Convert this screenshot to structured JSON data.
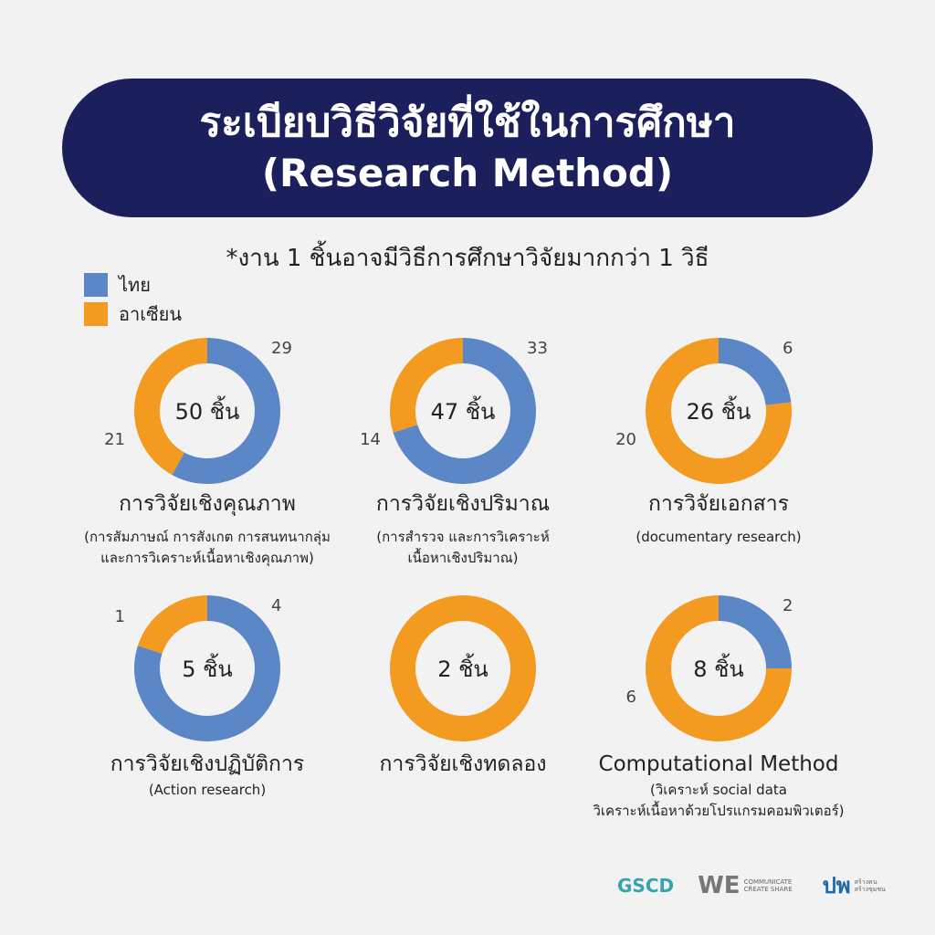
{
  "header": {
    "title_th": "ระเบียบวิธีวิจัยที่ใช้ในการศึกษา",
    "title_en": "(Research Method)"
  },
  "note": "*งาน 1 ชิ้นอาจมีวิธีการศึกษาวิจัยมากกว่า 1 วิธี",
  "legend": [
    {
      "label": "ไทย",
      "color": "#5b87c7"
    },
    {
      "label": "อาเซียน",
      "color": "#f39a21"
    }
  ],
  "chart_data": [
    {
      "type": "pie",
      "center_label": "50 ชิ้น",
      "thai": 29,
      "asean": 21,
      "thai_label": "29",
      "asean_label": "21",
      "title": "การวิจัยเชิงคุณภาพ",
      "subtitle_lines": [
        "(การสัมภาษณ์ การสังเกต การสนทนากลุ่ม",
        "และการวิเคราะห์เนื้อหาเชิงคุณภาพ)"
      ]
    },
    {
      "type": "pie",
      "center_label": "47 ชิ้น",
      "thai": 33,
      "asean": 14,
      "thai_label": "33",
      "asean_label": "14",
      "title": "การวิจัยเชิงปริมาณ",
      "subtitle_lines": [
        "(การสำรวจ และการวิเคราะห์",
        "เนื้อหาเชิงปริมาณ)"
      ]
    },
    {
      "type": "pie",
      "center_label": "26 ชิ้น",
      "thai": 6,
      "asean": 20,
      "thai_label": "6",
      "asean_label": "20",
      "title": "การวิจัยเอกสาร",
      "subtitle_lines": [
        "(documentary research)"
      ]
    },
    {
      "type": "pie",
      "center_label": "5 ชิ้น",
      "thai": 4,
      "asean": 1,
      "thai_label": "4",
      "asean_label": "1",
      "title": "การวิจัยเชิงปฏิบัติการ",
      "subtitle_lines": [
        "(Action research)"
      ]
    },
    {
      "type": "pie",
      "center_label": "2 ชิ้น",
      "thai": 0,
      "asean": 2,
      "thai_label": "",
      "asean_label": "",
      "title": "การวิจัยเชิงทดลอง",
      "subtitle_lines": []
    },
    {
      "type": "pie",
      "center_label": "8 ชิ้น",
      "thai": 2,
      "asean": 6,
      "thai_label": "2",
      "asean_label": "6",
      "title": "Computational Method",
      "subtitle_lines": [
        "(วิเคราะห์ social data",
        "วิเคราะห์เนื้อหาด้วยโปรแกรมคอมพิวเตอร์)"
      ]
    }
  ],
  "logos": {
    "logo1": "GSCD",
    "logo2": "WE",
    "logo2_tag": "COMMUNICATE CREATE SHARE",
    "logo3": "ปพ",
    "logo3_tag": "สร้างคน สร้างชุมชน"
  }
}
